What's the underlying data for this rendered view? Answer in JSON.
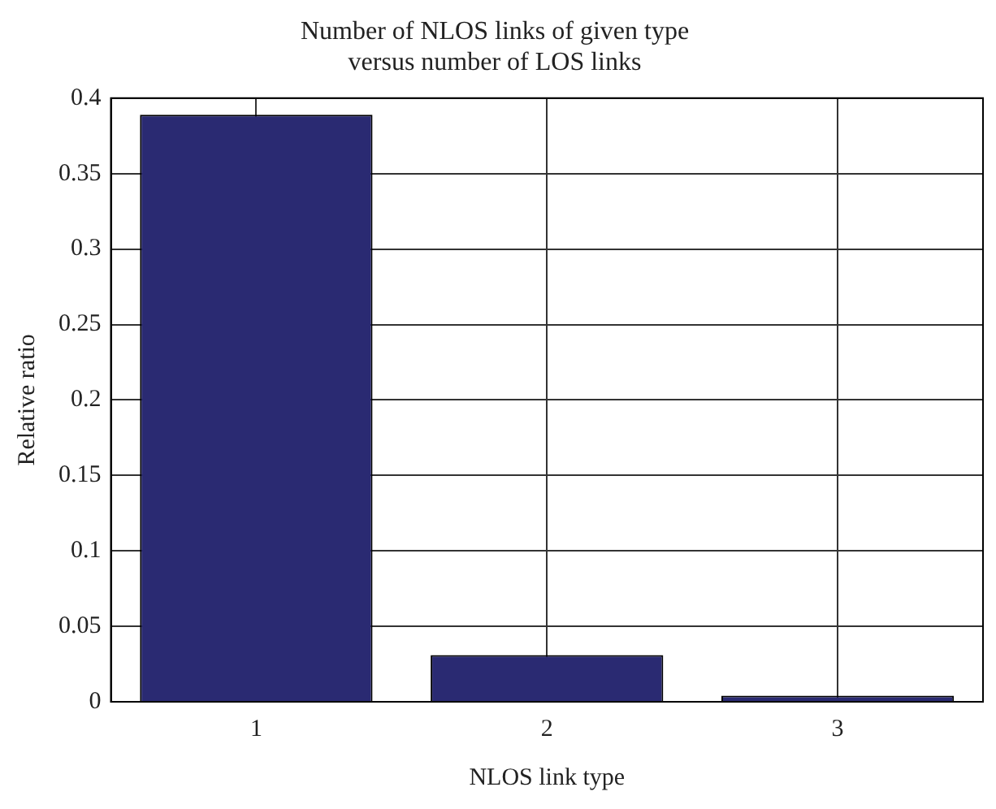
{
  "chart_data": {
    "type": "bar",
    "title": [
      "Number of NLOS links of given type",
      "versus number of LOS links"
    ],
    "xlabel": "NLOS link type",
    "ylabel": "Relative ratio",
    "categories": [
      "1",
      "2",
      "3"
    ],
    "values": [
      0.389,
      0.031,
      0.004
    ],
    "color": "#2a2a72",
    "ylim": [
      0,
      0.4
    ],
    "yticks": [
      0,
      0.05,
      0.1,
      0.15,
      0.2,
      0.25,
      0.3,
      0.35,
      0.4
    ],
    "grid": true,
    "legend": false
  }
}
